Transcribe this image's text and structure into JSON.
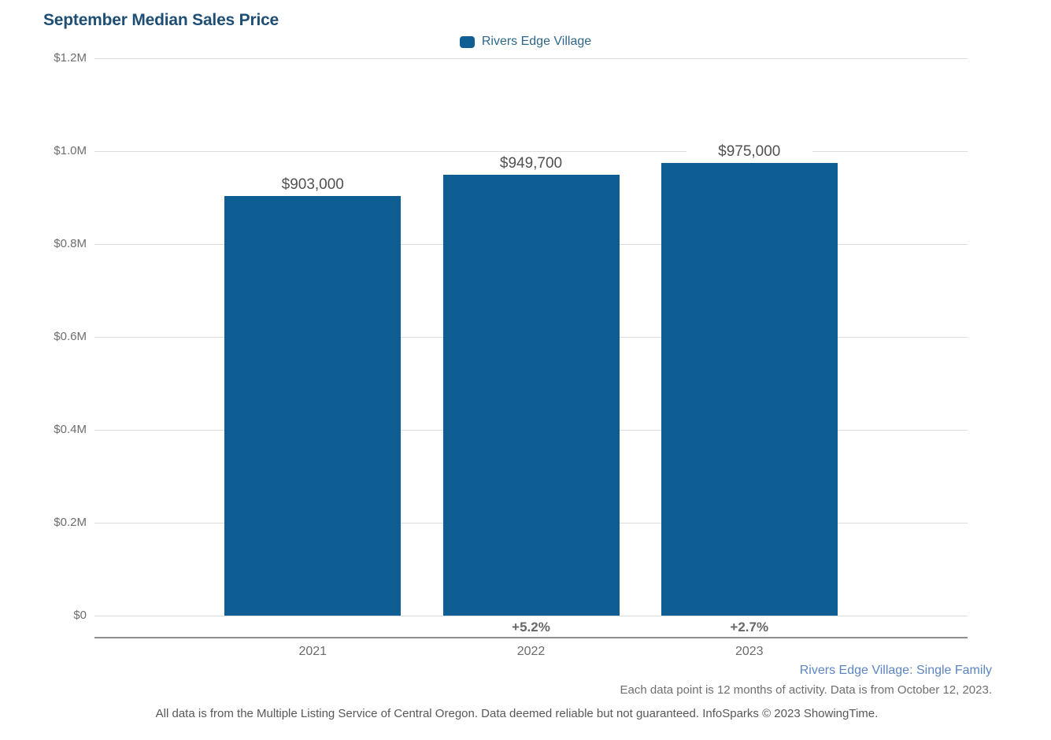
{
  "header": {
    "title": "September Median Sales Price"
  },
  "legend": {
    "label": "Rivers Edge Village"
  },
  "chart_data": {
    "type": "bar",
    "title": "September Median Sales Price",
    "categories": [
      "2021",
      "2022",
      "2023"
    ],
    "series": [
      {
        "name": "Rivers Edge Village",
        "values": [
          903000,
          949700,
          975000
        ],
        "value_labels": [
          "$903,000",
          "$949,700",
          "$975,000"
        ],
        "pct_change_labels": [
          "",
          "+5.2%",
          "+2.7%"
        ]
      }
    ],
    "y_axis": {
      "tick_labels": [
        "$1.2M",
        "$1.0M",
        "$0.8M",
        "$0.6M",
        "$0.4M",
        "$0.2M",
        "$0"
      ],
      "tick_values": [
        1200000,
        1000000,
        800000,
        600000,
        400000,
        200000,
        0
      ],
      "min": 0,
      "max": 1200000,
      "grid": true
    },
    "legend": {
      "entries": [
        "Rivers Edge Village"
      ],
      "position": "top-center"
    }
  },
  "footer": {
    "series_note": "Rivers Edge Village: Single Family",
    "data_note": "Each data point is 12 months of activity. Data is from October 12, 2023.",
    "disclaimer": "All data is from the Multiple Listing Service of Central Oregon. Data deemed reliable but not guaranteed. InfoSparks © 2023 ShowingTime."
  },
  "colors": {
    "bar": "#0e5e94",
    "title_text": "#1f4e74",
    "legend_text": "#2e6689",
    "value_label_text": "#515151",
    "axis_text": "#6b6b6b",
    "gridline": "#dcdcdc",
    "axis_line": "#8f8f8f",
    "footer_link_text": "#5c85c0",
    "footer_note_text": "#6e6e6e"
  }
}
